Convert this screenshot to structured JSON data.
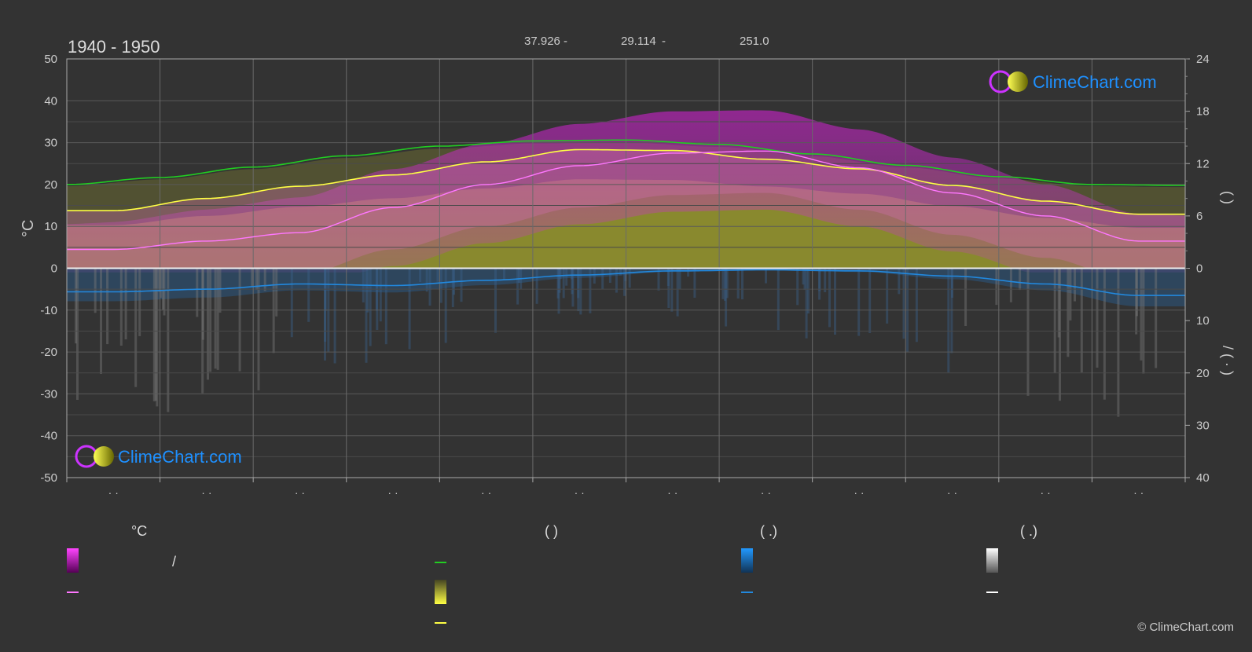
{
  "header": {
    "period": "1940 - 1950",
    "coords": [
      {
        "value": "37.926",
        "suffix": "-"
      },
      {
        "value": "29.114",
        "suffix": "-"
      },
      {
        "value": "251.0",
        "suffix": ""
      }
    ]
  },
  "watermarks": {
    "top_brand": "ClimeChart.com",
    "bottom_brand": "ClimeChart.com",
    "copyright": "© ClimeChart.com"
  },
  "axes": {
    "left_unit": "°C",
    "right_label_upper": "(  )",
    "right_label_lower": "/  ( · )"
  },
  "legend": {
    "col1_header": "°C",
    "col1_slash": "/",
    "col2_header": "(   )",
    "col3_header": "(  .)",
    "col4_header": "(  .)",
    "x_tick_placeholder": "· ·"
  },
  "colors": {
    "background": "#333333",
    "grid": "#5a5a5a",
    "daylight": "#22cc22",
    "sunshine": "#ffff44",
    "sunshine_fill": "#c8c832",
    "avg_max": "#ff77ff",
    "temp_range": "#e020e0",
    "precip": "#2288dd",
    "snow": "#aaaaaa",
    "brand": "#1e90ff"
  },
  "chart_data": {
    "type": "line",
    "title": "1940 - 1950",
    "ylabel": "°C",
    "ylim": [
      -50,
      50
    ],
    "y_ticks": [
      50,
      40,
      30,
      20,
      10,
      0,
      -10,
      -20,
      -30,
      -40,
      -50
    ],
    "y2_upper_lim": [
      0,
      24
    ],
    "y2_upper_ticks": [
      24,
      18,
      12,
      6,
      0
    ],
    "y2_lower_lim": [
      0,
      40
    ],
    "y2_lower_ticks": [
      0,
      10,
      20,
      30,
      40
    ],
    "x_months": 12,
    "grid": true,
    "series": [
      {
        "key": "daylight",
        "axis": "hours",
        "x": [
          0,
          1,
          2,
          3,
          4,
          5,
          6,
          7,
          8,
          9,
          10,
          11,
          12
        ],
        "values": [
          9.6,
          10.4,
          11.6,
          12.9,
          14.0,
          14.6,
          14.7,
          14.2,
          13.1,
          11.8,
          10.5,
          9.6,
          9.5
        ]
      },
      {
        "key": "sunshine",
        "axis": "hours",
        "x": [
          0,
          0.5,
          1.5,
          2.5,
          3.5,
          4.5,
          5.5,
          6.5,
          7.5,
          8.5,
          9.5,
          10.5,
          11.5,
          12
        ],
        "values": [
          6.6,
          6.6,
          8.0,
          9.4,
          10.7,
          12.2,
          13.6,
          13.5,
          12.5,
          11.4,
          9.5,
          7.7,
          6.2,
          6.2
        ]
      },
      {
        "key": "avg_max",
        "axis": "temp",
        "x": [
          0,
          0.5,
          1.5,
          2.5,
          3.5,
          4.5,
          5.5,
          6.5,
          7.5,
          8.5,
          9.5,
          10.5,
          11.5,
          12
        ],
        "values": [
          4.5,
          4.5,
          6.5,
          8.5,
          14.5,
          20.0,
          24.5,
          27.5,
          28.0,
          24.0,
          18.0,
          12.5,
          6.5,
          6.5
        ]
      },
      {
        "key": "precip",
        "axis": "mm",
        "x": [
          0,
          0.5,
          1.5,
          2.5,
          3.5,
          4.5,
          5.5,
          6.5,
          7.5,
          8.5,
          9.5,
          10.5,
          11.5,
          12
        ],
        "values": [
          4.5,
          4.5,
          4.0,
          3.0,
          3.3,
          2.3,
          1.3,
          0.5,
          0.3,
          0.5,
          1.5,
          3.0,
          5.2,
          5.2
        ]
      }
    ]
  }
}
